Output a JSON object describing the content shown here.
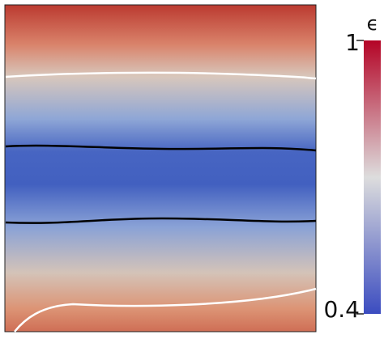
{
  "chart_data": {
    "type": "field",
    "colorbar_label": "ϵ",
    "clim": [
      0.4,
      1
    ],
    "cticks": [
      0.4,
      1
    ],
    "colormap": [
      "#3b4cc0",
      "#dddddd",
      "#b40426"
    ]
  }
}
